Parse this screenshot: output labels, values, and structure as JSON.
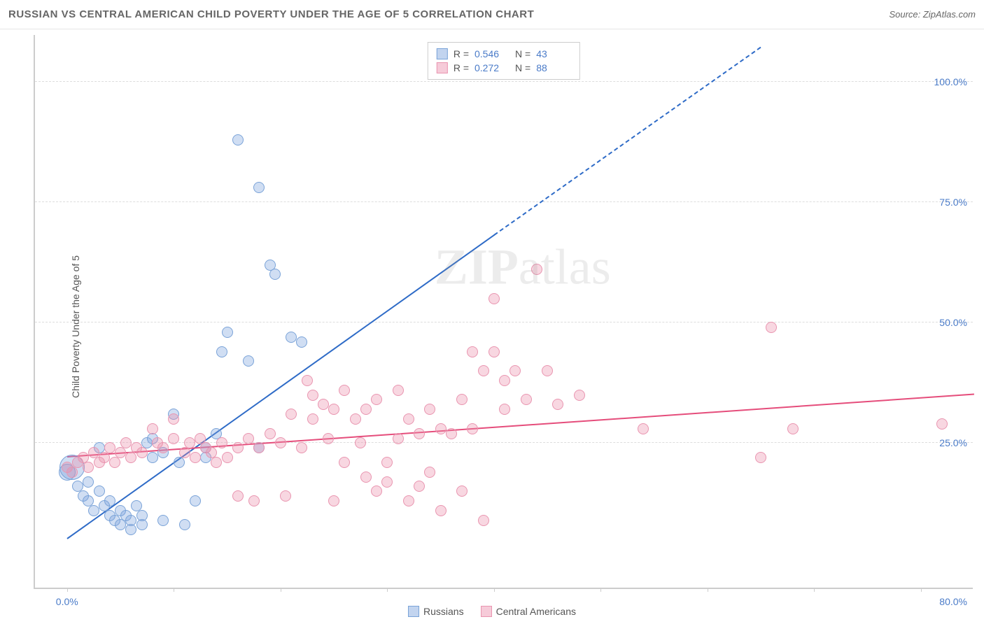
{
  "header": {
    "title": "RUSSIAN VS CENTRAL AMERICAN CHILD POVERTY UNDER THE AGE OF 5 CORRELATION CHART",
    "source": "Source: ZipAtlas.com"
  },
  "chart": {
    "type": "scatter",
    "ylabel": "Child Poverty Under the Age of 5",
    "watermark": "ZIPatlas",
    "xlim": [
      -3,
      85
    ],
    "ylim": [
      -5,
      110
    ],
    "xticks": [
      0,
      10,
      20,
      30,
      40,
      50,
      60,
      70,
      80
    ],
    "xtick_labels": {
      "0": "0.0%",
      "80": "80.0%"
    },
    "yticks": [
      25,
      50,
      75,
      100
    ],
    "ytick_labels": {
      "25": "25.0%",
      "50": "50.0%",
      "75": "75.0%",
      "100": "100.0%"
    },
    "grid_color": "#dddddd",
    "axis_color": "#cccccc",
    "tick_label_color": "#4a7bc8",
    "background_color": "#ffffff",
    "series": [
      {
        "name": "Russians",
        "fill": "rgba(120,160,220,0.35)",
        "stroke": "#7aa3d8",
        "trend_color": "#2e6bc7",
        "trend_solid": {
          "x1": 0,
          "y1": 5,
          "x2": 40,
          "y2": 68
        },
        "trend_dash": {
          "x1": 40,
          "y1": 68,
          "x2": 65,
          "y2": 107
        },
        "marker_r": 8,
        "points": [
          {
            "x": 0,
            "y": 19,
            "r": 12
          },
          {
            "x": 0.5,
            "y": 20,
            "r": 18
          },
          {
            "x": 1,
            "y": 16
          },
          {
            "x": 1.5,
            "y": 14
          },
          {
            "x": 2,
            "y": 17
          },
          {
            "x": 2,
            "y": 13
          },
          {
            "x": 2.5,
            "y": 11
          },
          {
            "x": 3,
            "y": 15
          },
          {
            "x": 3,
            "y": 24
          },
          {
            "x": 3.5,
            "y": 12
          },
          {
            "x": 4,
            "y": 10
          },
          {
            "x": 4,
            "y": 13
          },
          {
            "x": 4.5,
            "y": 9
          },
          {
            "x": 5,
            "y": 11
          },
          {
            "x": 5,
            "y": 8
          },
          {
            "x": 5.5,
            "y": 10
          },
          {
            "x": 6,
            "y": 9
          },
          {
            "x": 6,
            "y": 7
          },
          {
            "x": 6.5,
            "y": 12
          },
          {
            "x": 7,
            "y": 8
          },
          {
            "x": 7,
            "y": 10
          },
          {
            "x": 7.5,
            "y": 25
          },
          {
            "x": 8,
            "y": 26
          },
          {
            "x": 8,
            "y": 22
          },
          {
            "x": 9,
            "y": 9
          },
          {
            "x": 9,
            "y": 23
          },
          {
            "x": 10,
            "y": 31
          },
          {
            "x": 10.5,
            "y": 21
          },
          {
            "x": 11,
            "y": 8
          },
          {
            "x": 12,
            "y": 13
          },
          {
            "x": 13,
            "y": 24
          },
          {
            "x": 13,
            "y": 22
          },
          {
            "x": 14,
            "y": 27
          },
          {
            "x": 14.5,
            "y": 44
          },
          {
            "x": 15,
            "y": 48
          },
          {
            "x": 16,
            "y": 88
          },
          {
            "x": 17,
            "y": 42
          },
          {
            "x": 18,
            "y": 24
          },
          {
            "x": 18,
            "y": 78
          },
          {
            "x": 19,
            "y": 62
          },
          {
            "x": 19.5,
            "y": 60
          },
          {
            "x": 21,
            "y": 47
          },
          {
            "x": 22,
            "y": 46
          }
        ]
      },
      {
        "name": "Central Americans",
        "fill": "rgba(235,140,170,0.35)",
        "stroke": "#e995b0",
        "trend_color": "#e54d7b",
        "trend_solid": {
          "x1": 0,
          "y1": 22,
          "x2": 85,
          "y2": 35
        },
        "trend_dash": null,
        "marker_r": 8,
        "points": [
          {
            "x": 0,
            "y": 20
          },
          {
            "x": 0.5,
            "y": 19
          },
          {
            "x": 1,
            "y": 21
          },
          {
            "x": 1.5,
            "y": 22
          },
          {
            "x": 2,
            "y": 20
          },
          {
            "x": 2.5,
            "y": 23
          },
          {
            "x": 3,
            "y": 21
          },
          {
            "x": 3.5,
            "y": 22
          },
          {
            "x": 4,
            "y": 24
          },
          {
            "x": 4.5,
            "y": 21
          },
          {
            "x": 5,
            "y": 23
          },
          {
            "x": 5.5,
            "y": 25
          },
          {
            "x": 6,
            "y": 22
          },
          {
            "x": 6.5,
            "y": 24
          },
          {
            "x": 7,
            "y": 23
          },
          {
            "x": 8,
            "y": 28
          },
          {
            "x": 8.5,
            "y": 25
          },
          {
            "x": 9,
            "y": 24
          },
          {
            "x": 10,
            "y": 30
          },
          {
            "x": 10,
            "y": 26
          },
          {
            "x": 11,
            "y": 23
          },
          {
            "x": 11.5,
            "y": 25
          },
          {
            "x": 12,
            "y": 22
          },
          {
            "x": 12.5,
            "y": 26
          },
          {
            "x": 13,
            "y": 24
          },
          {
            "x": 13.5,
            "y": 23
          },
          {
            "x": 14,
            "y": 21
          },
          {
            "x": 14.5,
            "y": 25
          },
          {
            "x": 15,
            "y": 22
          },
          {
            "x": 16,
            "y": 24
          },
          {
            "x": 16,
            "y": 14
          },
          {
            "x": 17,
            "y": 26
          },
          {
            "x": 17.5,
            "y": 13
          },
          {
            "x": 18,
            "y": 24
          },
          {
            "x": 19,
            "y": 27
          },
          {
            "x": 20,
            "y": 25
          },
          {
            "x": 20.5,
            "y": 14
          },
          {
            "x": 21,
            "y": 31
          },
          {
            "x": 22,
            "y": 24
          },
          {
            "x": 22.5,
            "y": 38
          },
          {
            "x": 23,
            "y": 30
          },
          {
            "x": 23,
            "y": 35
          },
          {
            "x": 24,
            "y": 33
          },
          {
            "x": 24.5,
            "y": 26
          },
          {
            "x": 25,
            "y": 13
          },
          {
            "x": 25,
            "y": 32
          },
          {
            "x": 26,
            "y": 36
          },
          {
            "x": 26,
            "y": 21
          },
          {
            "x": 27,
            "y": 30
          },
          {
            "x": 27.5,
            "y": 25
          },
          {
            "x": 28,
            "y": 18
          },
          {
            "x": 28,
            "y": 32
          },
          {
            "x": 29,
            "y": 15
          },
          {
            "x": 29,
            "y": 34
          },
          {
            "x": 30,
            "y": 21
          },
          {
            "x": 30,
            "y": 17
          },
          {
            "x": 31,
            "y": 36
          },
          {
            "x": 31,
            "y": 26
          },
          {
            "x": 32,
            "y": 13
          },
          {
            "x": 32,
            "y": 30
          },
          {
            "x": 33,
            "y": 16
          },
          {
            "x": 33,
            "y": 27
          },
          {
            "x": 34,
            "y": 32
          },
          {
            "x": 34,
            "y": 19
          },
          {
            "x": 35,
            "y": 28
          },
          {
            "x": 35,
            "y": 11
          },
          {
            "x": 36,
            "y": 27
          },
          {
            "x": 37,
            "y": 34
          },
          {
            "x": 37,
            "y": 15
          },
          {
            "x": 38,
            "y": 44
          },
          {
            "x": 38,
            "y": 28
          },
          {
            "x": 39,
            "y": 40
          },
          {
            "x": 39,
            "y": 9
          },
          {
            "x": 40,
            "y": 55
          },
          {
            "x": 40,
            "y": 44
          },
          {
            "x": 41,
            "y": 38
          },
          {
            "x": 41,
            "y": 32
          },
          {
            "x": 42,
            "y": 40
          },
          {
            "x": 43,
            "y": 34
          },
          {
            "x": 44,
            "y": 61
          },
          {
            "x": 45,
            "y": 40
          },
          {
            "x": 46,
            "y": 33
          },
          {
            "x": 48,
            "y": 35
          },
          {
            "x": 54,
            "y": 28
          },
          {
            "x": 65,
            "y": 22
          },
          {
            "x": 66,
            "y": 49
          },
          {
            "x": 68,
            "y": 28
          },
          {
            "x": 82,
            "y": 29
          }
        ]
      }
    ],
    "legend_top": {
      "rows": [
        {
          "swatch_fill": "rgba(120,160,220,0.45)",
          "swatch_stroke": "#7aa3d8",
          "r_label": "R =",
          "r_val": "0.546",
          "n_label": "N =",
          "n_val": "43"
        },
        {
          "swatch_fill": "rgba(235,140,170,0.45)",
          "swatch_stroke": "#e995b0",
          "r_label": "R =",
          "r_val": "0.272",
          "n_label": "N =",
          "n_val": "88"
        }
      ]
    },
    "legend_bottom": {
      "items": [
        {
          "swatch_fill": "rgba(120,160,220,0.45)",
          "swatch_stroke": "#7aa3d8",
          "label": "Russians"
        },
        {
          "swatch_fill": "rgba(235,140,170,0.45)",
          "swatch_stroke": "#e995b0",
          "label": "Central Americans"
        }
      ]
    }
  }
}
